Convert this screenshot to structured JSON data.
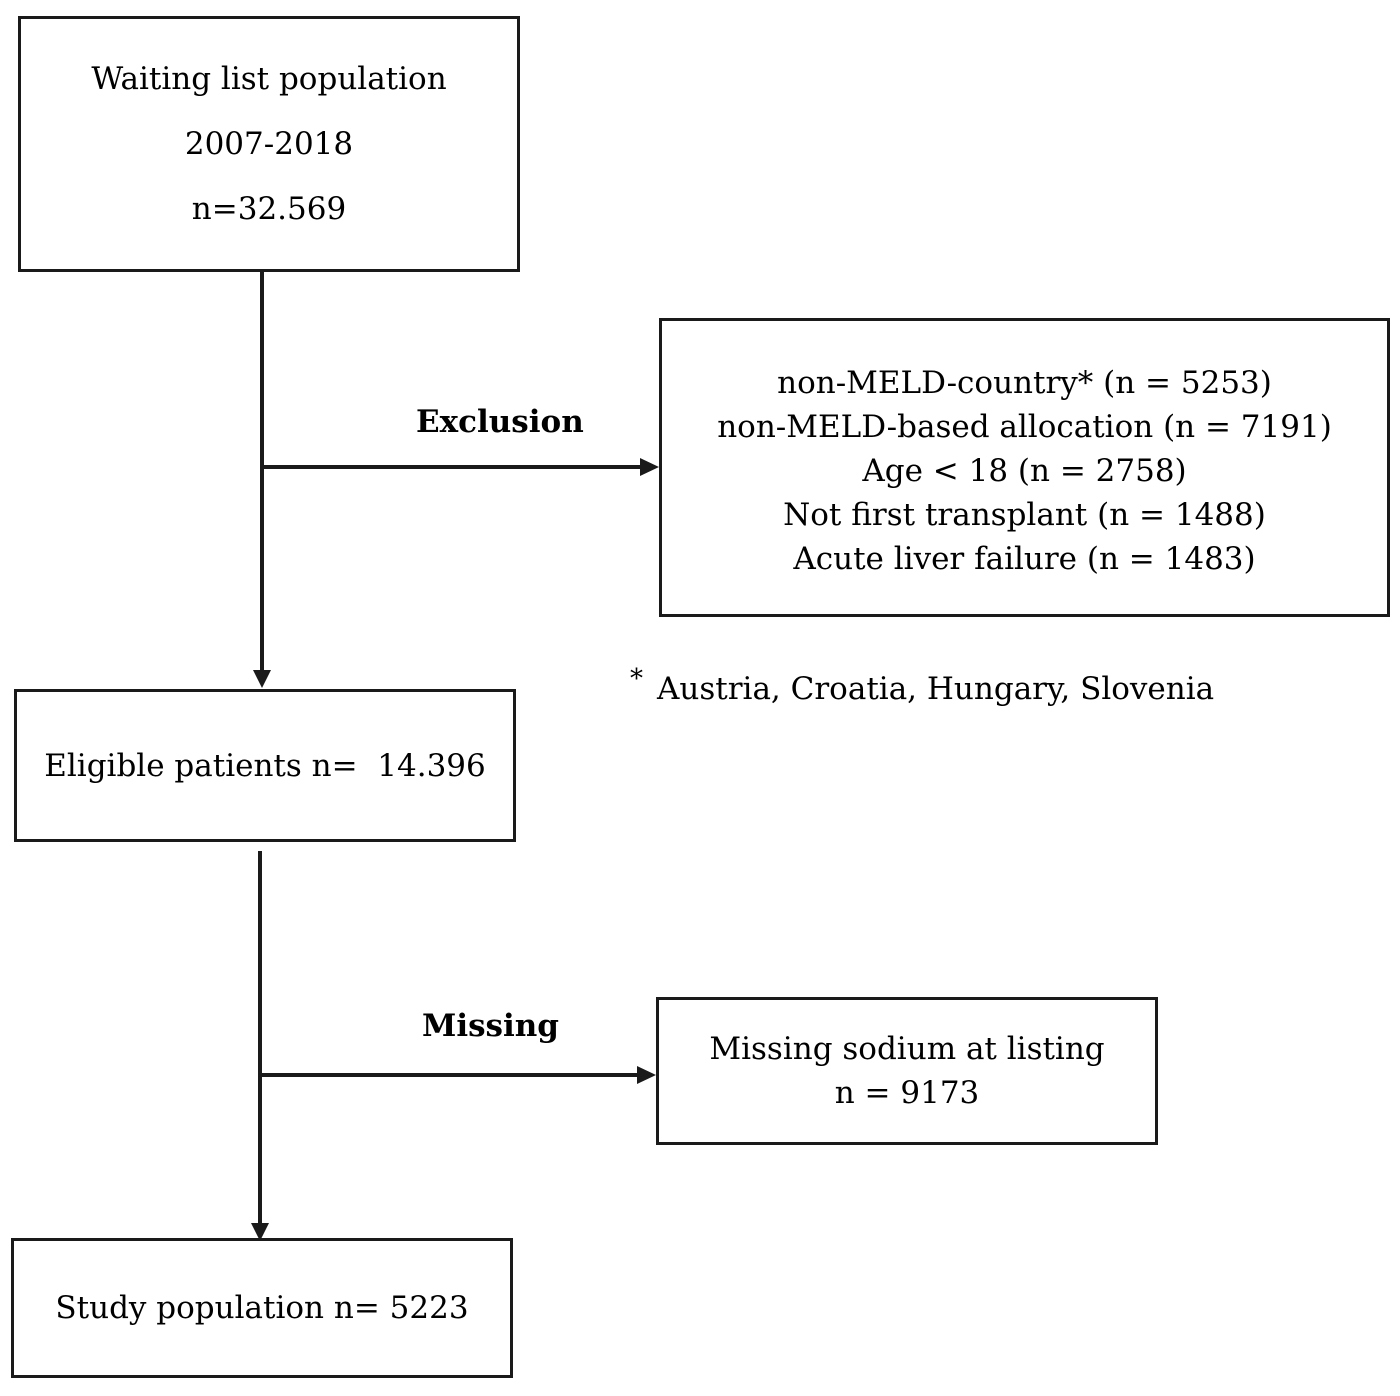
{
  "boxes": {
    "waiting_list": {
      "lines": [
        "Waiting list population",
        "2007-2018",
        "n=32.569"
      ]
    },
    "exclusion": {
      "lines": [
        "non-MELD-country* (n = 5253)",
        "non-MELD-based allocation (n = 7191)",
        "Age < 18 (n = 2758)",
        "Not first transplant (n = 1488)",
        "Acute liver failure (n = 1483)"
      ]
    },
    "eligible": {
      "text": "Eligible patients n=  14.396"
    },
    "missing": {
      "lines": [
        "Missing sodium at listing",
        "n = 9173"
      ]
    },
    "study": {
      "text": "Study population n= 5223"
    }
  },
  "edge_labels": {
    "exclusion": "Exclusion",
    "missing": "Missing"
  },
  "footnote": {
    "marker": "*",
    "text": "Austria, Croatia, Hungary, Slovenia"
  },
  "colors": {
    "stroke": "#1a1a1a",
    "background": "#ffffff"
  }
}
